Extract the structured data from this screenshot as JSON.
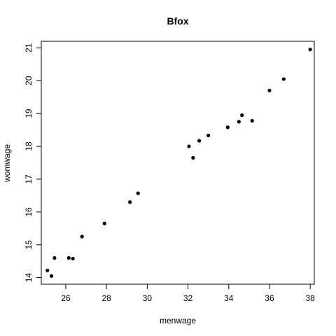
{
  "chart_data": {
    "type": "scatter",
    "title": "Bfox",
    "xlabel": "menwage",
    "ylabel": "womwage",
    "xlim": [
      24.8,
      38.2
    ],
    "ylim": [
      13.8,
      21.2
    ],
    "x_ticks": [
      26,
      28,
      30,
      32,
      34,
      36,
      38
    ],
    "y_ticks": [
      14,
      15,
      16,
      17,
      18,
      19,
      20,
      21
    ],
    "grid": false,
    "legend": "none",
    "point_color": "#000000",
    "series": [
      {
        "points": [
          {
            "x": 25.1,
            "y": 14.22
          },
          {
            "x": 25.3,
            "y": 14.05
          },
          {
            "x": 25.45,
            "y": 14.6
          },
          {
            "x": 26.15,
            "y": 14.6
          },
          {
            "x": 26.35,
            "y": 14.58
          },
          {
            "x": 26.8,
            "y": 15.25
          },
          {
            "x": 27.9,
            "y": 15.65
          },
          {
            "x": 29.15,
            "y": 16.3
          },
          {
            "x": 29.55,
            "y": 16.57
          },
          {
            "x": 32.05,
            "y": 18.0
          },
          {
            "x": 32.25,
            "y": 17.65
          },
          {
            "x": 32.55,
            "y": 18.17
          },
          {
            "x": 33.0,
            "y": 18.33
          },
          {
            "x": 33.95,
            "y": 18.58
          },
          {
            "x": 34.5,
            "y": 18.75
          },
          {
            "x": 34.65,
            "y": 18.95
          },
          {
            "x": 35.15,
            "y": 18.78
          },
          {
            "x": 36.0,
            "y": 19.7
          },
          {
            "x": 36.7,
            "y": 20.05
          },
          {
            "x": 38.0,
            "y": 20.95
          }
        ]
      }
    ]
  }
}
